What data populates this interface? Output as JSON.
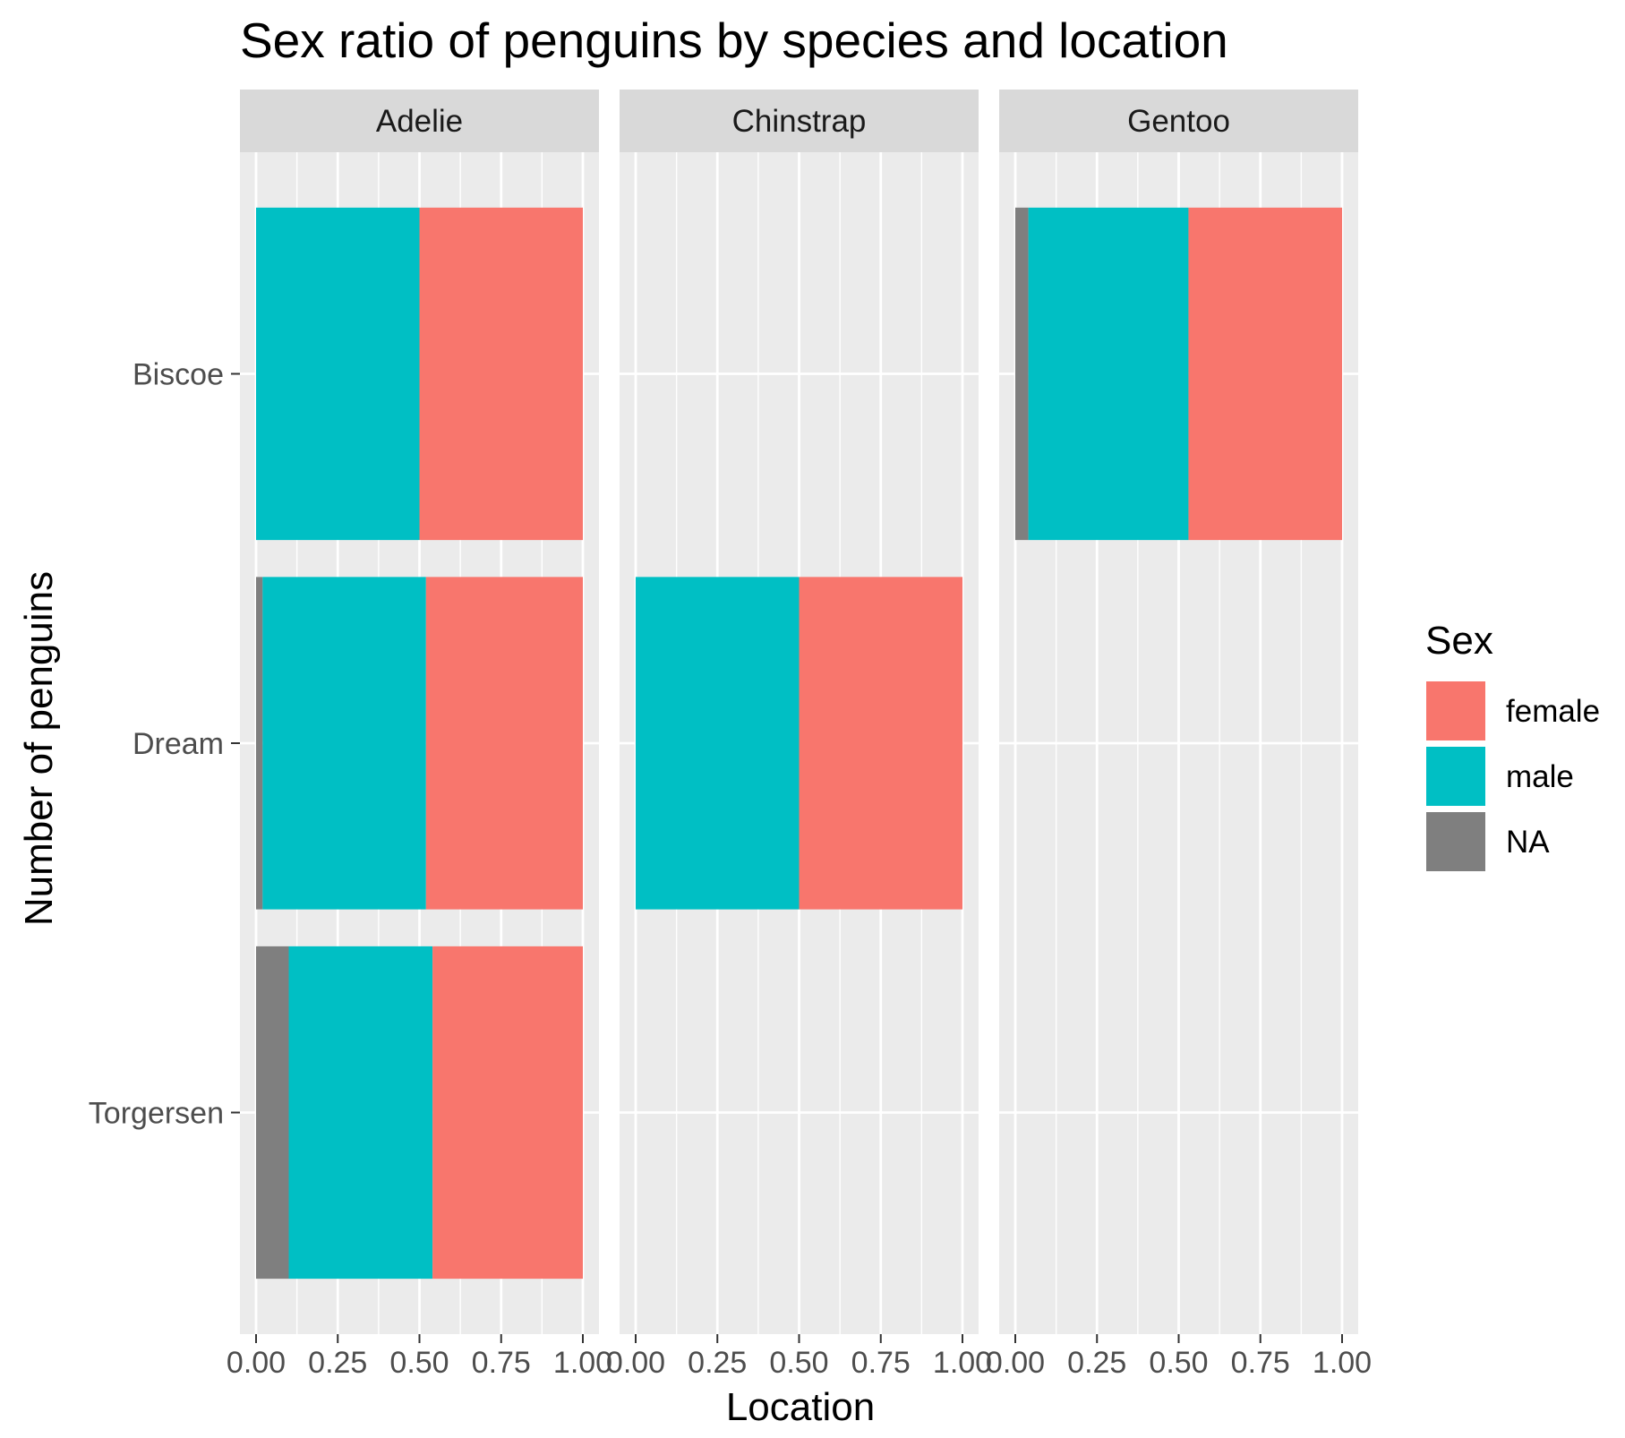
{
  "chart_data": {
    "type": "bar",
    "orientation": "horizontal",
    "stacked": true,
    "title": "Sex ratio of penguins by species and location",
    "xlabel": "Location",
    "ylabel": "Number of penguins",
    "xlim": [
      0,
      1
    ],
    "x_ticks": [
      "0.00",
      "0.25",
      "0.50",
      "0.75",
      "1.00"
    ],
    "categories": [
      "Torgersen",
      "Dream",
      "Biscoe"
    ],
    "grid": true,
    "facets": [
      {
        "name": "Adelie",
        "series": [
          {
            "name": "female",
            "values": [
              0.46,
              0.48,
              0.5
            ]
          },
          {
            "name": "male",
            "values": [
              0.44,
              0.5,
              0.5
            ]
          },
          {
            "name": "NA",
            "values": [
              0.1,
              0.02,
              0
            ]
          }
        ]
      },
      {
        "name": "Chinstrap",
        "series": [
          {
            "name": "female",
            "values": [
              null,
              0.5,
              null
            ]
          },
          {
            "name": "male",
            "values": [
              null,
              0.5,
              null
            ]
          },
          {
            "name": "NA",
            "values": [
              null,
              0,
              null
            ]
          }
        ]
      },
      {
        "name": "Gentoo",
        "series": [
          {
            "name": "female",
            "values": [
              null,
              null,
              0.47
            ]
          },
          {
            "name": "male",
            "values": [
              null,
              null,
              0.49
            ]
          },
          {
            "name": "NA",
            "values": [
              null,
              null,
              0.04
            ]
          }
        ]
      }
    ],
    "legend": {
      "title": "Sex",
      "position": "right",
      "entries": [
        {
          "name": "female",
          "color": "#F8766D"
        },
        {
          "name": "male",
          "color": "#00BFC4"
        },
        {
          "name": "NA",
          "color": "#7F7F7F"
        }
      ]
    },
    "colors": {
      "female": "#F8766D",
      "male": "#00BFC4",
      "NA": "#7F7F7F",
      "panel_background": "#EBEBEB",
      "strip_background": "#D9D9D9",
      "grid": "#FFFFFF"
    }
  }
}
